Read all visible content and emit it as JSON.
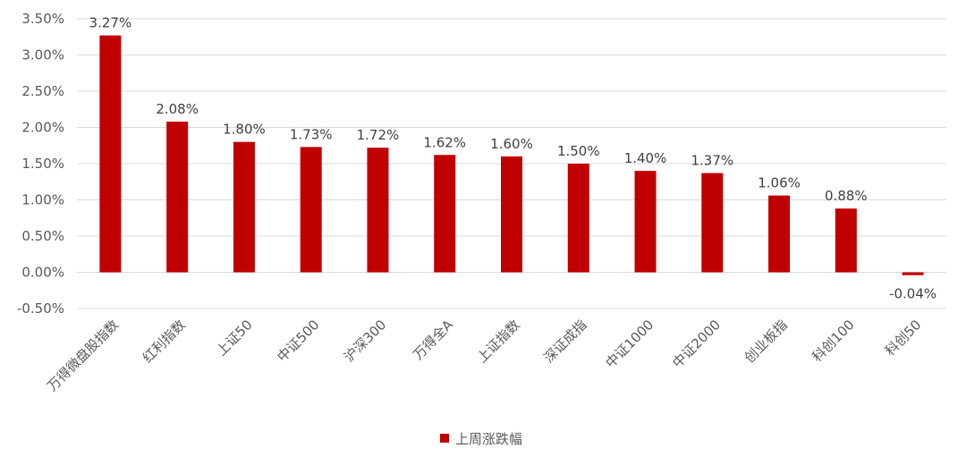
{
  "chart_data": {
    "type": "bar",
    "categories": [
      "万得微盘股指数",
      "红利指数",
      "上证50",
      "中证500",
      "沪深300",
      "万得全A",
      "上证指数",
      "深证成指",
      "中证1000",
      "中证2000",
      "创业板指",
      "科创100",
      "科创50"
    ],
    "series": [
      {
        "name": "上周涨跌幅",
        "values": [
          3.27,
          2.08,
          1.8,
          1.73,
          1.72,
          1.62,
          1.6,
          1.5,
          1.4,
          1.37,
          1.06,
          0.88,
          -0.04
        ],
        "data_labels": [
          "3.27%",
          "2.08%",
          "1.80%",
          "1.73%",
          "1.72%",
          "1.62%",
          "1.60%",
          "1.50%",
          "1.40%",
          "1.37%",
          "1.06%",
          "0.88%",
          "-0.04%"
        ],
        "color": "#c00000"
      }
    ],
    "y_ticks": [
      3.5,
      3.0,
      2.5,
      2.0,
      1.5,
      1.0,
      0.5,
      0.0,
      -0.5
    ],
    "y_tick_labels": [
      "3.50%",
      "3.00%",
      "2.50%",
      "2.00%",
      "1.50%",
      "1.00%",
      "0.50%",
      "0.00%",
      "-0.50%"
    ],
    "ylim": [
      -0.5,
      3.5
    ],
    "grid": true,
    "legend": "bottom-center",
    "colors": {
      "bar": "#c00000",
      "grid": "#d9d9d9",
      "text": "#595959"
    }
  }
}
